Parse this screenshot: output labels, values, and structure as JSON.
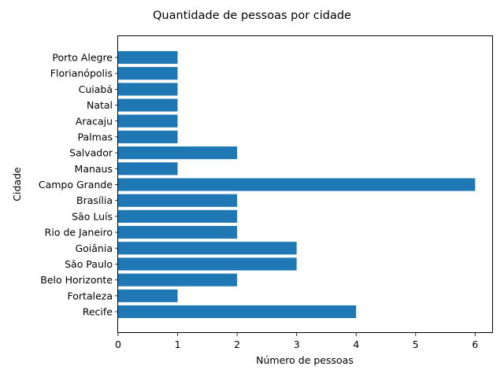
{
  "chart_data": {
    "type": "bar",
    "orientation": "horizontal",
    "title": "Quantidade de pessoas por cidade",
    "xlabel": "Número de pessoas",
    "ylabel": "Cidade",
    "xlim": [
      0,
      6.3
    ],
    "x_ticks": [
      "0",
      "1",
      "2",
      "3",
      "4",
      "5",
      "6"
    ],
    "categories": [
      "Recife",
      "Fortaleza",
      "Belo Horizonte",
      "São Paulo",
      "Goiânia",
      "Rio de Janeiro",
      "São Luís",
      "Brasília",
      "Campo Grande",
      "Manaus",
      "Salvador",
      "Palmas",
      "Aracaju",
      "Natal",
      "Cuiabá",
      "Florianópolis",
      "Porto Alegre"
    ],
    "values": [
      4,
      1,
      2,
      3,
      3,
      2,
      2,
      2,
      6,
      1,
      2,
      1,
      1,
      1,
      1,
      1,
      1
    ],
    "bar_color": "#1f77b4",
    "grid": false,
    "legend": "none"
  }
}
